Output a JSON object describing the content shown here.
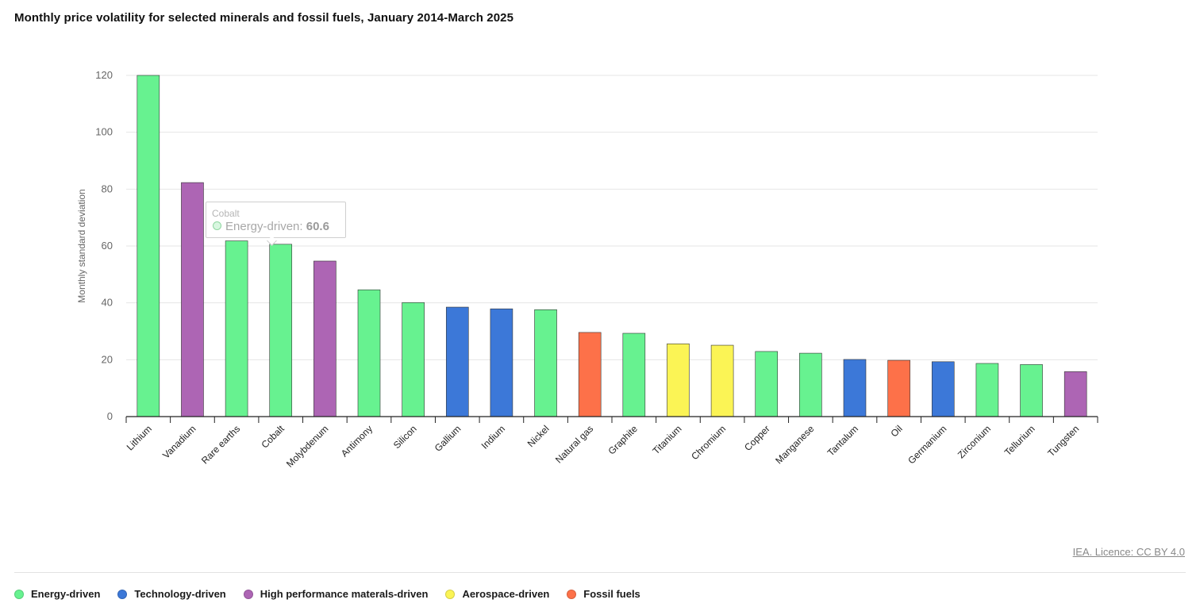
{
  "chart_data": {
    "type": "bar",
    "title": "Monthly price volatility for selected minerals and fossil fuels, January 2014-March 2025",
    "ylabel": "Monthly standard deviation",
    "xlabel": "",
    "ylim": [
      0,
      120
    ],
    "yticks": [
      0,
      20,
      40,
      60,
      80,
      100,
      120
    ],
    "grid": true,
    "legend_position": "bottom",
    "categories": [
      "Lithium",
      "Vanadium",
      "Rare earths",
      "Cobalt",
      "Molybdenum",
      "Antimony",
      "Silicon",
      "Gallium",
      "Indium",
      "Nickel",
      "Natural gas",
      "Graphite",
      "Titanium",
      "Chromium",
      "Copper",
      "Manganese",
      "Tantalum",
      "Oil",
      "Germanium",
      "Zirconium",
      "Tellurium",
      "Tungsten"
    ],
    "values": [
      120,
      82.3,
      61.8,
      60.6,
      54.7,
      44.6,
      40.1,
      38.5,
      37.9,
      37.6,
      29.6,
      29.3,
      25.6,
      25.1,
      22.9,
      22.3,
      20.1,
      19.8,
      19.3,
      18.7,
      18.3,
      15.8
    ],
    "groups": [
      "Energy-driven",
      "High performance materals-driven",
      "Energy-driven",
      "Energy-driven",
      "High performance materals-driven",
      "Energy-driven",
      "Energy-driven",
      "Technology-driven",
      "Technology-driven",
      "Energy-driven",
      "Fossil fuels",
      "Energy-driven",
      "Aerospace-driven",
      "Aerospace-driven",
      "Energy-driven",
      "Energy-driven",
      "Technology-driven",
      "Fossil fuels",
      "Technology-driven",
      "Energy-driven",
      "Energy-driven",
      "High performance materals-driven"
    ],
    "series_colors": {
      "Energy-driven": "#67f290",
      "Technology-driven": "#3c78d8",
      "High performance materals-driven": "#ad65b4",
      "Aerospace-driven": "#fbf455",
      "Fossil fuels": "#fd7149"
    },
    "legend": [
      {
        "name": "Energy-driven",
        "color": "#67f290"
      },
      {
        "name": "Technology-driven",
        "color": "#3c78d8"
      },
      {
        "name": "High performance materals-driven",
        "color": "#ad65b4"
      },
      {
        "name": "Aerospace-driven",
        "color": "#fbf455"
      },
      {
        "name": "Fossil fuels",
        "color": "#fd7149"
      }
    ]
  },
  "tooltip": {
    "title": "Cobalt",
    "series": "Energy-driven",
    "sep": ": ",
    "value": "60.6"
  },
  "credit": "IEA. Licence: CC BY 4.0"
}
